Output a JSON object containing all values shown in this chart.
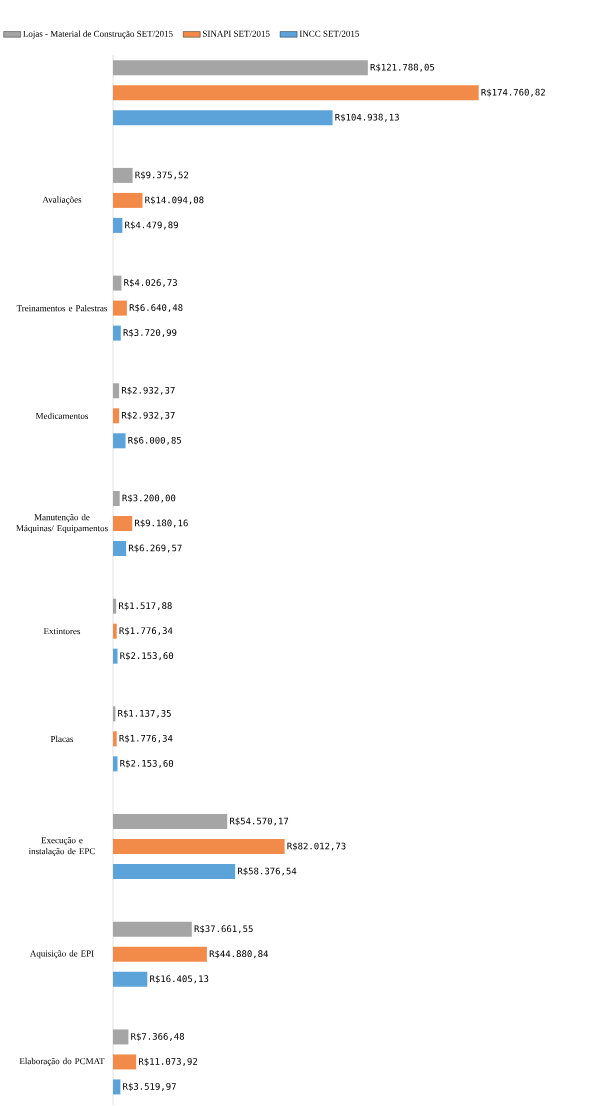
{
  "chart_data": {
    "type": "bar",
    "orientation": "horizontal",
    "legend": "top",
    "categories": [
      null,
      "Avaliações",
      "Treinamentos e Palestras",
      "Medicamentos",
      "Manutenção de Máquinas/ Equipamentos",
      "Extintores",
      "Placas",
      "Execução e instalação de EPC",
      "Aquisição de EPI",
      "Elaboração do PCMAT"
    ],
    "series": [
      {
        "name": "Lojas - Material de Construção SET/2015",
        "color": "#a5a5a5",
        "values": [
          121788.05,
          9375.52,
          4026.73,
          2932.37,
          3200.0,
          1517.88,
          1137.35,
          54570.17,
          37661.55,
          7366.48
        ],
        "value_labels": [
          "R$121.788,05",
          "R$9.375,52",
          "R$4.026,73",
          "R$2.932,37",
          "R$3.200,00",
          "R$1.517,88",
          "R$1.137,35",
          "R$54.570,17",
          "R$37.661,55",
          "R$7.366,48"
        ]
      },
      {
        "name": "SINAPI SET/2015",
        "color": "#f28a4a",
        "values": [
          174760.82,
          14094.08,
          6640.48,
          2932.37,
          9180.16,
          1776.34,
          1776.34,
          82012.73,
          44880.84,
          11073.92
        ],
        "value_labels": [
          "R$174.760,82",
          "R$14.094,08",
          "R$6.640,48",
          "R$2.932,37",
          "R$9.180,16",
          "R$1.776,34",
          "R$1.776,34",
          "R$82.012,73",
          "R$44.880,84",
          "R$11.073,92"
        ]
      },
      {
        "name": "INCC SET/2015",
        "color": "#5ba3d9",
        "values": [
          104938.13,
          4479.89,
          3720.99,
          6000.85,
          6269.57,
          2153.6,
          2153.6,
          58376.54,
          16405.13,
          3519.97
        ],
        "value_labels": [
          "R$104.938,13",
          "R$4.479,89",
          "R$3.720,99",
          "R$6.000,85",
          "R$6.269,57",
          "R$2.153,60",
          "R$2.153,60",
          "R$58.376,54",
          "R$16.405,13",
          "R$3.519,97"
        ]
      }
    ]
  }
}
